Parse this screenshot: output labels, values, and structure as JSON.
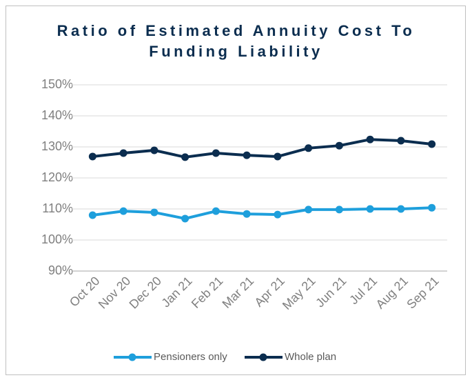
{
  "chart_data": {
    "type": "line",
    "title": "Ratio of Estimated Annuity Cost To Funding Liability",
    "categories": [
      "Oct 20",
      "Nov 20",
      "Dec 20",
      "Jan 21",
      "Feb 21",
      "Mar 21",
      "Apr 21",
      "May 21",
      "Jun 21",
      "Jul 21",
      "Aug 21",
      "Sep 21"
    ],
    "series": [
      {
        "name": "Pensioners only",
        "color": "#1e9fdc",
        "values": [
          108.0,
          109.3,
          108.9,
          106.9,
          109.3,
          108.4,
          108.2,
          109.8,
          109.8,
          110.0,
          110.0,
          110.4
        ]
      },
      {
        "name": "Whole plan",
        "color": "#0b2d4f",
        "values": [
          126.9,
          128.0,
          128.9,
          126.7,
          128.0,
          127.3,
          126.9,
          129.6,
          130.4,
          132.4,
          132.0,
          130.9
        ]
      }
    ],
    "ylim": [
      90,
      150
    ],
    "yticks": [
      {
        "value": 90,
        "label": "90%"
      },
      {
        "value": 100,
        "label": "100%"
      },
      {
        "value": 110,
        "label": "110%"
      },
      {
        "value": 120,
        "label": "120%"
      },
      {
        "value": 130,
        "label": "130%"
      },
      {
        "value": 140,
        "label": "140%"
      },
      {
        "value": 150,
        "label": "150%"
      }
    ],
    "grid": true,
    "legend": "bottom"
  }
}
